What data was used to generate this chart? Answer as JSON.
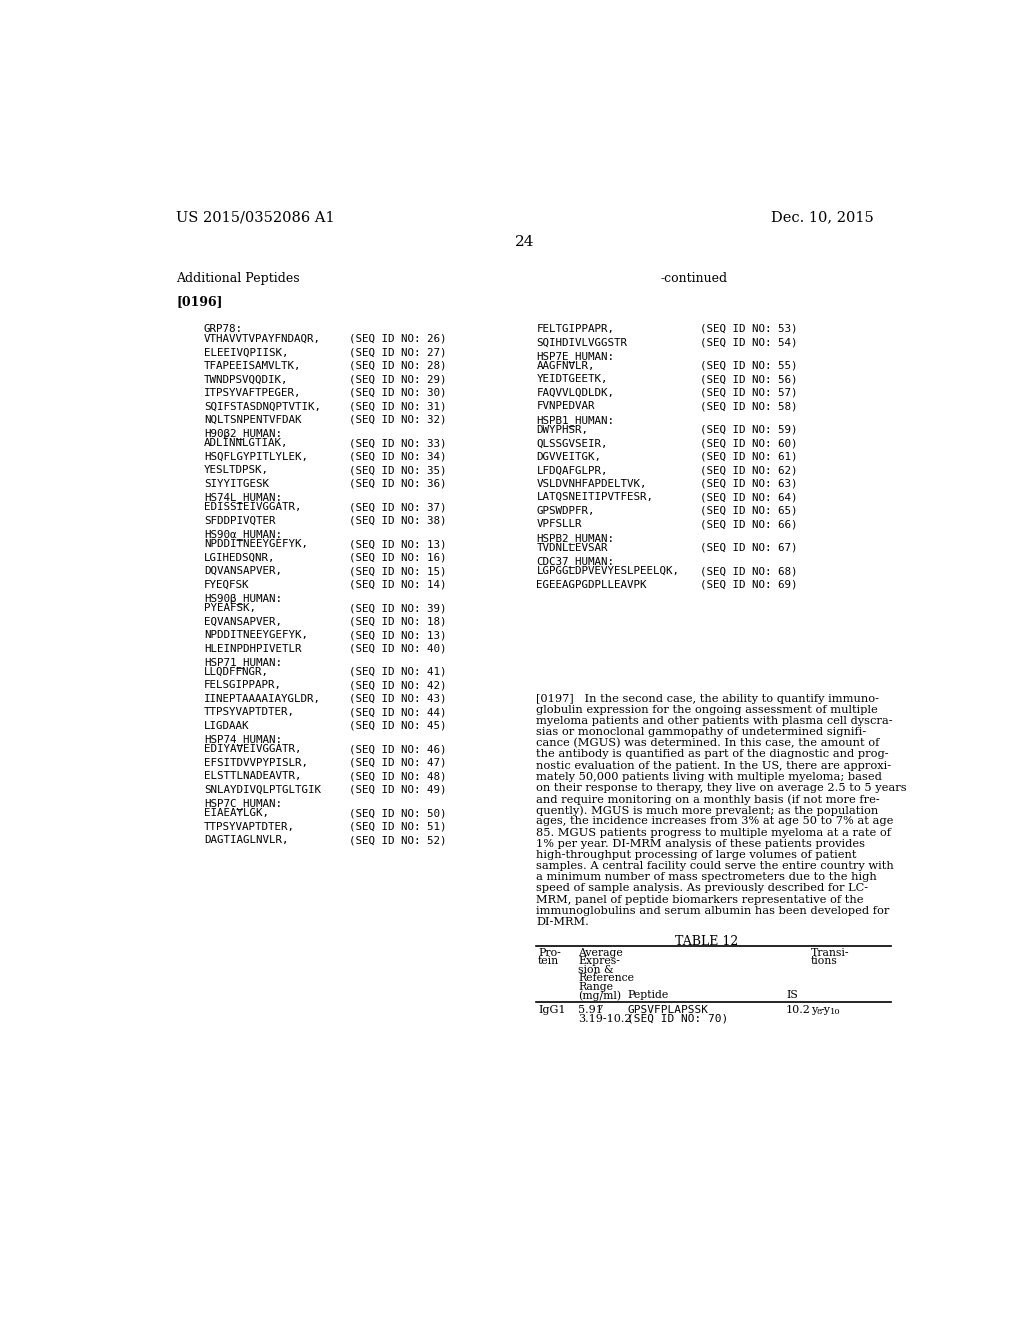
{
  "page_number": "24",
  "patent_number": "US 2015/0352086 A1",
  "patent_date": "Dec. 10, 2015",
  "section_title": "Additional Peptides",
  "paragraph_ref": "[0196]",
  "continued_label": "-continued",
  "left_entries": [
    {
      "label": "GRP78:",
      "peptide": "VTHAVVTVPAYFNDAQR,",
      "seq": "(SEQ ID NO: 26)"
    },
    {
      "label": "",
      "peptide": "ELEEIVQPIISK,",
      "seq": "(SEQ ID NO: 27)"
    },
    {
      "label": "",
      "peptide": "TFAPEEISAMVLTK,",
      "seq": "(SEQ ID NO: 28)"
    },
    {
      "label": "",
      "peptide": "TWNDPSVQQDIK,",
      "seq": "(SEQ ID NO: 29)"
    },
    {
      "label": "",
      "peptide": "ITPSYVAFTPEGER,",
      "seq": "(SEQ ID NO: 30)"
    },
    {
      "label": "",
      "peptide": "SQIFSTASDNQPTVTIK,",
      "seq": "(SEQ ID NO: 31)"
    },
    {
      "label": "",
      "peptide": "NQLTSNPENTVFDAK",
      "seq": "(SEQ ID NO: 32)"
    },
    {
      "label": "H90β2_HUMAN:",
      "peptide": "ADLINNLGTIAK,",
      "seq": "(SEQ ID NO: 33)"
    },
    {
      "label": "",
      "peptide": "HSQFLGYPITLYLEK,",
      "seq": "(SEQ ID NO: 34)"
    },
    {
      "label": "",
      "peptide": "YESLTDPSK,",
      "seq": "(SEQ ID NO: 35)"
    },
    {
      "label": "",
      "peptide": "SIYYITGESK",
      "seq": "(SEQ ID NO: 36)"
    },
    {
      "label": "HS74L_HUMAN:",
      "peptide": "EDISSIEIVGGATR,",
      "seq": "(SEQ ID NO: 37)"
    },
    {
      "label": "",
      "peptide": "SFDDPIVQTER",
      "seq": "(SEQ ID NO: 38)"
    },
    {
      "label": "HS90α_HUMAN:",
      "peptide": "NPDDITNEEYGEFYK,",
      "seq": "(SEQ ID NO: 13)"
    },
    {
      "label": "",
      "peptide": "LGIHEDSQNR,",
      "seq": "(SEQ ID NO: 16)"
    },
    {
      "label": "",
      "peptide": "DQVANSAPVER,",
      "seq": "(SEQ ID NO: 15)"
    },
    {
      "label": "",
      "peptide": "FYEQFSK",
      "seq": "(SEQ ID NO: 14)"
    },
    {
      "label": "HS90β_HUMAN:",
      "peptide": "PYEAFSK,",
      "seq": "(SEQ ID NO: 39)"
    },
    {
      "label": "",
      "peptide": "EQVANSAPVER,",
      "seq": "(SEQ ID NO: 18)"
    },
    {
      "label": "",
      "peptide": "NPDDITNEEYGEFYK,",
      "seq": "(SEQ ID NO: 13)"
    },
    {
      "label": "",
      "peptide": "HLEINPDHPIVETLR",
      "seq": "(SEQ ID NO: 40)"
    },
    {
      "label": "HSP71_HUMAN:",
      "peptide": "LLQDFFNGR,",
      "seq": "(SEQ ID NO: 41)"
    },
    {
      "label": "",
      "peptide": "FELSGIPPAPR,",
      "seq": "(SEQ ID NO: 42)"
    },
    {
      "label": "",
      "peptide": "IINEPTAAAAIAYGLDR,",
      "seq": "(SEQ ID NO: 43)"
    },
    {
      "label": "",
      "peptide": "TTPSYVAPTDTER,",
      "seq": "(SEQ ID NO: 44)"
    },
    {
      "label": "",
      "peptide": "LIGDAAK",
      "seq": "(SEQ ID NO: 45)"
    },
    {
      "label": "HSP74_HUMAN:",
      "peptide": "EDIYAVEIVGGATR,",
      "seq": "(SEQ ID NO: 46)"
    },
    {
      "label": "",
      "peptide": "EFSITDVVPYPISLR,",
      "seq": "(SEQ ID NO: 47)"
    },
    {
      "label": "",
      "peptide": "ELSTTLNADEAVTR,",
      "seq": "(SEQ ID NO: 48)"
    },
    {
      "label": "",
      "peptide": "SNLAYDIVQLPTGLTGIK",
      "seq": "(SEQ ID NO: 49)"
    },
    {
      "label": "HSP7C_HUMAN:",
      "peptide": "EIAEAYLGK,",
      "seq": "(SEQ ID NO: 50)"
    },
    {
      "label": "",
      "peptide": "TTPSYVAPTDTER,",
      "seq": "(SEQ ID NO: 51)"
    },
    {
      "label": "",
      "peptide": "DAGTIAGLNVLR,",
      "seq": "(SEQ ID NO: 52)"
    }
  ],
  "right_entries": [
    {
      "label": "",
      "peptide": "FELTGIPPAPR,",
      "seq": "(SEQ ID NO: 53)"
    },
    {
      "label": "",
      "peptide": "SQIHDIVLVGGSTR",
      "seq": "(SEQ ID NO: 54)"
    },
    {
      "label": "HSP7E_HUMAN:",
      "peptide": "AAGFNVLR,",
      "seq": "(SEQ ID NO: 55)"
    },
    {
      "label": "",
      "peptide": "YEIDTGEETK,",
      "seq": "(SEQ ID NO: 56)"
    },
    {
      "label": "",
      "peptide": "FAQVVLQDLDK,",
      "seq": "(SEQ ID NO: 57)"
    },
    {
      "label": "",
      "peptide": "FVNPEDVAR",
      "seq": "(SEQ ID NO: 58)"
    },
    {
      "label": "HSPB1_HUMAN:",
      "peptide": "DWYPHSR,",
      "seq": "(SEQ ID NO: 59)"
    },
    {
      "label": "",
      "peptide": "QLSSGVSEIR,",
      "seq": "(SEQ ID NO: 60)"
    },
    {
      "label": "",
      "peptide": "DGVVEITGK,",
      "seq": "(SEQ ID NO: 61)"
    },
    {
      "label": "",
      "peptide": "LFDQAFGLPR,",
      "seq": "(SEQ ID NO: 62)"
    },
    {
      "label": "",
      "peptide": "VSLDVNHFAPDELTVK,",
      "seq": "(SEQ ID NO: 63)"
    },
    {
      "label": "",
      "peptide": "LATQSNEITIPVTFESR,",
      "seq": "(SEQ ID NO: 64)"
    },
    {
      "label": "",
      "peptide": "GPSWDPFR,",
      "seq": "(SEQ ID NO: 65)"
    },
    {
      "label": "",
      "peptide": "VPFSLLR",
      "seq": "(SEQ ID NO: 66)"
    },
    {
      "label": "HSPB2_HUMAN:",
      "peptide": "TVDNLLEVSAR",
      "seq": "(SEQ ID NO: 67)"
    },
    {
      "label": "CDC37_HUMAN:",
      "peptide": "LGPGGLDPVEVYESLPEELQK,",
      "seq": "(SEQ ID NO: 68)"
    },
    {
      "label": "",
      "peptide": "EGEEAGPGDPLLEAVPK",
      "seq": "(SEQ ID NO: 69)"
    }
  ],
  "para_0197_lines": [
    "[0197]   In the second case, the ability to quantify immuno-",
    "globulin expression for the ongoing assessment of multiple",
    "myeloma patients and other patients with plasma cell dyscra-",
    "sias or monoclonal gammopathy of undetermined signifi-",
    "cance (MGUS) was determined. In this case, the amount of",
    "the antibody is quantified as part of the diagnostic and prog-",
    "nostic evaluation of the patient. In the US, there are approxi-",
    "mately 50,000 patients living with multiple myeloma; based",
    "on their response to therapy, they live on average 2.5 to 5 years",
    "and require monitoring on a monthly basis (if not more fre-",
    "quently). MGUS is much more prevalent; as the population",
    "ages, the incidence increases from 3% at age 50 to 7% at age",
    "85. MGUS patients progress to multiple myeloma at a rate of",
    "1% per year. DI-MRM analysis of these patients provides",
    "high-throughput processing of large volumes of patient",
    "samples. A central facility could serve the entire country with",
    "a minimum number of mass spectrometers due to the high",
    "speed of sample analysis. As previously described for LC-",
    "MRM, panel of peptide biomarkers representative of the",
    "immunoglobulins and serum albumin has been developed for",
    "DI-MRM."
  ],
  "table_title": "TABLE 12",
  "bg_color": "#ffffff",
  "text_color": "#000000"
}
